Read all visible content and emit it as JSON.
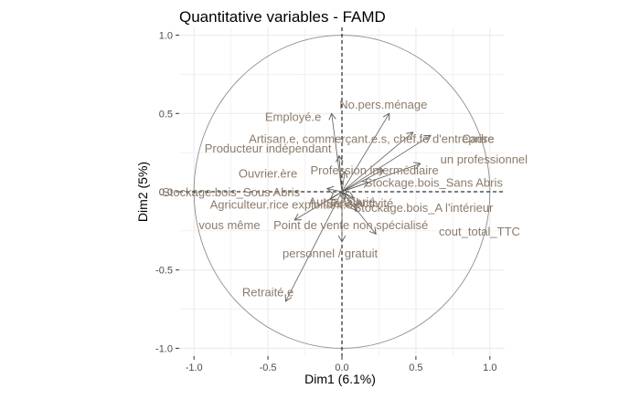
{
  "colors": {
    "background": "#ffffff",
    "panel": "#ffffff",
    "grid": "#ebebeb",
    "circle": "#8c8c8c",
    "arrow": "#5f5a55",
    "label": "#8c7b6b",
    "axis_text": "#4d4d4d",
    "title": "#000000"
  },
  "chart_data": {
    "type": "scatter",
    "subtype": "pca-correlation-circle",
    "title": "Quantitative variables - FAMD",
    "xlabel": "Dim1 (6.1%)",
    "ylabel": "Dim2 (5%)",
    "xlim": [
      -1.1,
      1.1
    ],
    "ylim": [
      -1.05,
      1.05
    ],
    "xticks": [
      -1.0,
      -0.5,
      0.0,
      0.5,
      1.0
    ],
    "yticks": [
      -1.0,
      -0.5,
      0.0,
      0.5,
      1.0
    ],
    "xtick_labels": [
      "-1.0",
      "-0.5",
      "0.0",
      "0.5",
      "1.0"
    ],
    "ytick_labels": [
      "-1.0",
      "-0.5",
      "0.0",
      "0.5",
      "1.0"
    ],
    "grid": true,
    "unit_circle": true,
    "reference_lines": "dashed at x=0 and y=0",
    "variables": [
      {
        "name": "No.pers.ménage",
        "x": 0.32,
        "y": 0.5,
        "lx": 0.28,
        "ly": 0.56
      },
      {
        "name": "Employé.e",
        "x": -0.07,
        "y": 0.5,
        "lx": -0.33,
        "ly": 0.48
      },
      {
        "name": "Artisan.e, commerçant.e.s, chef.fe d'entreprise",
        "x": 0.48,
        "y": 0.38,
        "lx": 0.2,
        "ly": 0.34
      },
      {
        "name": "Cadre",
        "x": 0.6,
        "y": 0.36,
        "lx": 0.92,
        "ly": 0.34
      },
      {
        "name": "Producteur indépendant",
        "x": -0.02,
        "y": 0.23,
        "lx": -0.5,
        "ly": 0.28
      },
      {
        "name": "un professionnel",
        "x": 0.53,
        "y": 0.18,
        "lx": 0.96,
        "ly": 0.21
      },
      {
        "name": "Ouvrier.ère",
        "x": 0.02,
        "y": 0.13,
        "lx": -0.5,
        "ly": 0.12
      },
      {
        "name": "Profession intermédiaire",
        "x": 0.28,
        "y": 0.14,
        "lx": 0.22,
        "ly": 0.14
      },
      {
        "name": "Stockage.bois_Sans Abris",
        "x": 0.18,
        "y": 0.06,
        "lx": 0.62,
        "ly": 0.06
      },
      {
        "name": "Stockage.bois_Sous Abris",
        "x": -0.1,
        "y": 0.02,
        "lx": -0.75,
        "ly": 0.0
      },
      {
        "name": "Autre salarié",
        "x": 0.02,
        "y": -0.05,
        "lx": 0.0,
        "ly": -0.06
      },
      {
        "name": "Agriculteur.rice exploitant.e",
        "x": -0.08,
        "y": -0.05,
        "lx": -0.41,
        "ly": -0.08
      },
      {
        "name": "Sans activité",
        "x": 0.08,
        "y": -0.04,
        "lx": 0.12,
        "ly": -0.07
      },
      {
        "name": "Stockage.bois_A l'intérieur",
        "x": 0.12,
        "y": -0.08,
        "lx": 0.55,
        "ly": -0.1
      },
      {
        "name": "Point de vente non spécialisé",
        "x": 0.1,
        "y": -0.12,
        "lx": 0.06,
        "ly": -0.21
      },
      {
        "name": "cout_total_TTC",
        "x": 0.23,
        "y": -0.27,
        "lx": 0.93,
        "ly": -0.25
      },
      {
        "name": "vous même",
        "x": -0.32,
        "y": -0.18,
        "lx": -0.76,
        "ly": -0.21
      },
      {
        "name": "personnel / gratuit",
        "x": 0.0,
        "y": -0.32,
        "lx": -0.08,
        "ly": -0.39
      },
      {
        "name": "Retraité.e",
        "x": -0.38,
        "y": -0.7,
        "lx": -0.5,
        "ly": -0.64
      }
    ]
  }
}
